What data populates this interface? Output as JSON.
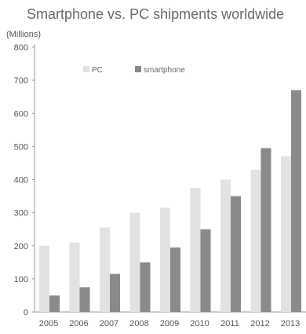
{
  "chart_data": {
    "type": "bar",
    "title": "Smartphone vs. PC shipments worldwide",
    "ylabel": "(Millions)",
    "xlabel": "",
    "categories": [
      "2005",
      "2006",
      "2007",
      "2008",
      "2009",
      "2010",
      "2011",
      "2012",
      "2013"
    ],
    "series": [
      {
        "name": "PC",
        "color": "#e2e2e2",
        "values": [
          200,
          210,
          255,
          300,
          315,
          375,
          400,
          430,
          470
        ]
      },
      {
        "name": "smartphone",
        "color": "#8a8a8a",
        "values": [
          50,
          75,
          115,
          150,
          195,
          250,
          350,
          495,
          670
        ]
      }
    ],
    "ylim": [
      0,
      800
    ],
    "yticks": [
      0,
      100,
      200,
      300,
      400,
      500,
      600,
      700,
      800
    ],
    "grid": false,
    "legend_position": "top-left"
  }
}
